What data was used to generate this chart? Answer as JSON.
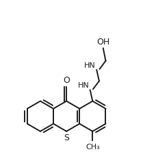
{
  "background_color": "#ffffff",
  "line_color": "#1a1a1a",
  "line_width": 1.4,
  "font_size": 8,
  "figsize": [
    2.09,
    2.44
  ],
  "dpi": 100,
  "xlim": [
    -1.1,
    1.3
  ],
  "ylim": [
    -0.75,
    2.55
  ]
}
